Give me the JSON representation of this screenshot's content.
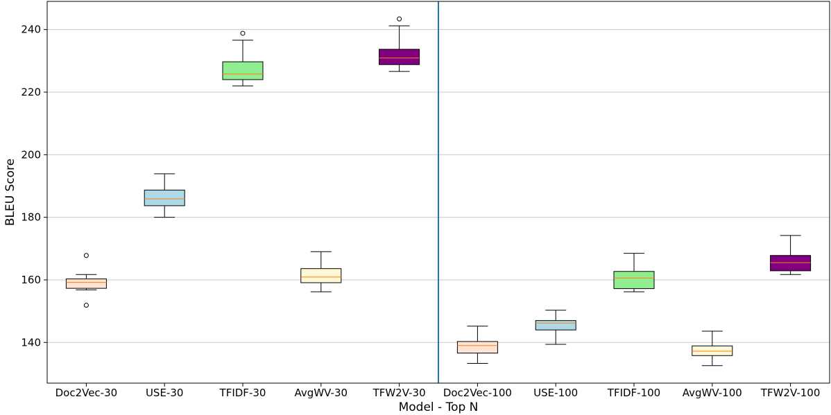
{
  "chart_data": {
    "type": "box",
    "xlabel": "Model - Top N",
    "ylabel": "BLEU Score",
    "ylim": [
      127,
      249
    ],
    "yticks": [
      140,
      160,
      180,
      200,
      220,
      240
    ],
    "grid": "horizontal",
    "divider_after_index": 4,
    "colors": {
      "divider": "#1f77b4",
      "median": "#ff7f0e",
      "grid": "#c8c8c8",
      "doc2vec": "#ffe4d6",
      "use": "#add8e6",
      "tfidf": "#90ee90",
      "avgwv": "#fff8d6",
      "tfw2v": "#800080"
    },
    "boxes": [
      {
        "label": "Doc2Vec-30",
        "color_key": "doc2vec",
        "whislo": 156.8,
        "q1": 157.3,
        "med": 159.2,
        "q3": 160.3,
        "whishi": 161.7,
        "fliers": [
          167.8,
          151.9
        ]
      },
      {
        "label": "USE-30",
        "color_key": "use",
        "whislo": 180.0,
        "q1": 183.7,
        "med": 185.9,
        "q3": 188.7,
        "whishi": 193.9,
        "fliers": []
      },
      {
        "label": "TFIDF-30",
        "color_key": "tfidf",
        "whislo": 222.0,
        "q1": 224.0,
        "med": 225.8,
        "q3": 229.7,
        "whishi": 236.6,
        "fliers": [
          238.8
        ]
      },
      {
        "label": "AvgWV-30",
        "color_key": "avgwv",
        "whislo": 156.2,
        "q1": 159.1,
        "med": 160.9,
        "q3": 163.6,
        "whishi": 169.0,
        "fliers": []
      },
      {
        "label": "TFW2V-30",
        "color_key": "tfw2v",
        "whislo": 226.6,
        "q1": 228.8,
        "med": 230.9,
        "q3": 233.7,
        "whishi": 241.2,
        "fliers": [
          243.4
        ]
      },
      {
        "label": "Doc2Vec-100",
        "color_key": "doc2vec",
        "whislo": 133.3,
        "q1": 136.6,
        "med": 139.0,
        "q3": 140.3,
        "whishi": 145.2,
        "fliers": []
      },
      {
        "label": "USE-100",
        "color_key": "use",
        "whislo": 139.4,
        "q1": 144.0,
        "med": 146.2,
        "q3": 147.0,
        "whishi": 150.3,
        "fliers": []
      },
      {
        "label": "TFIDF-100",
        "color_key": "tfidf",
        "whislo": 156.2,
        "q1": 157.2,
        "med": 160.6,
        "q3": 162.7,
        "whishi": 168.5,
        "fliers": []
      },
      {
        "label": "AvgWV-100",
        "color_key": "avgwv",
        "whislo": 132.6,
        "q1": 135.8,
        "med": 137.2,
        "q3": 138.9,
        "whishi": 143.6,
        "fliers": []
      },
      {
        "label": "TFW2V-100",
        "color_key": "tfw2v",
        "whislo": 161.7,
        "q1": 162.9,
        "med": 165.5,
        "q3": 167.8,
        "whishi": 174.2,
        "fliers": []
      }
    ]
  }
}
